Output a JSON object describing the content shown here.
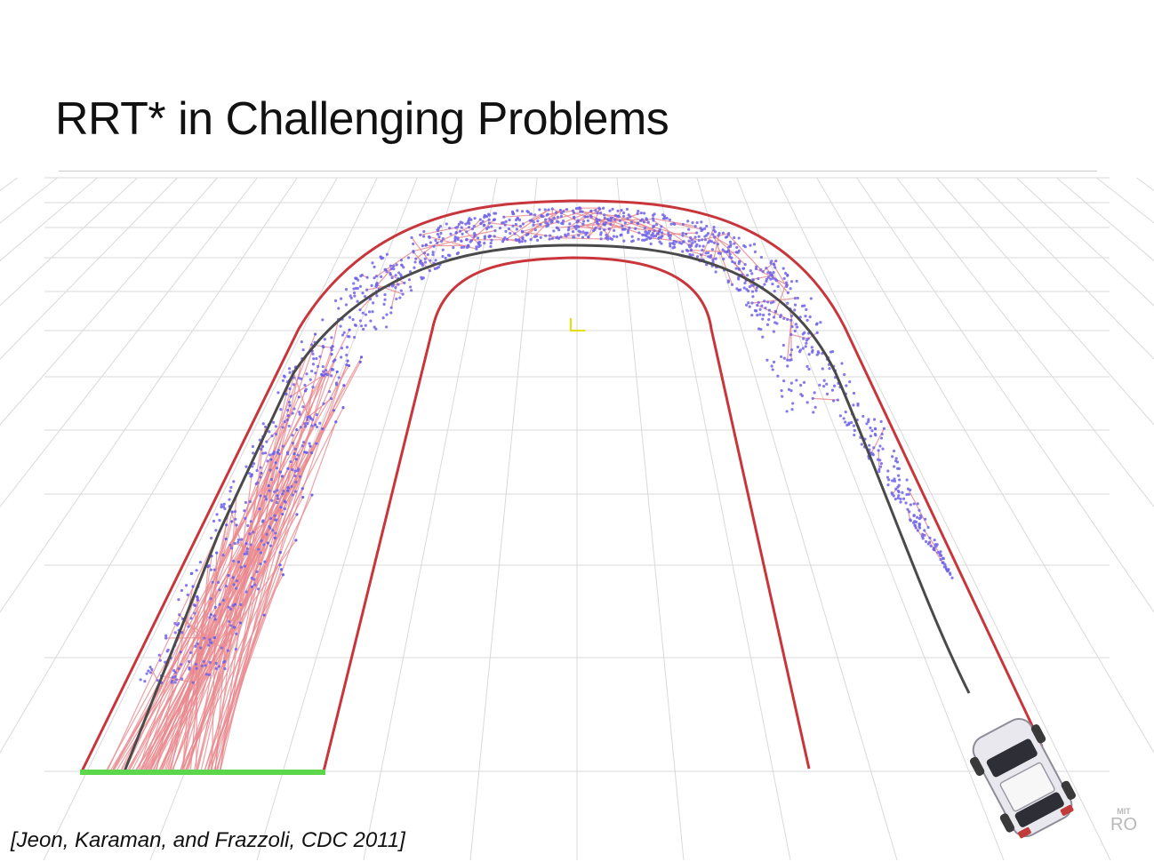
{
  "slide": {
    "title": "RRT* in Challenging Problems",
    "citation": "[Jeon, Karaman, and Frazzoli, CDC 2011]",
    "watermark_top": "MIT",
    "watermark_bottom": "RO"
  },
  "colors": {
    "track_boundary": "#c8363c",
    "tree_edges": "#e88a8f",
    "tree_nodes": "#6f63ea",
    "best_path": "#4a4a4a",
    "start_region": "#5cd64a",
    "grid": "#d9d9d9",
    "origin_marker": "#e4e000"
  }
}
